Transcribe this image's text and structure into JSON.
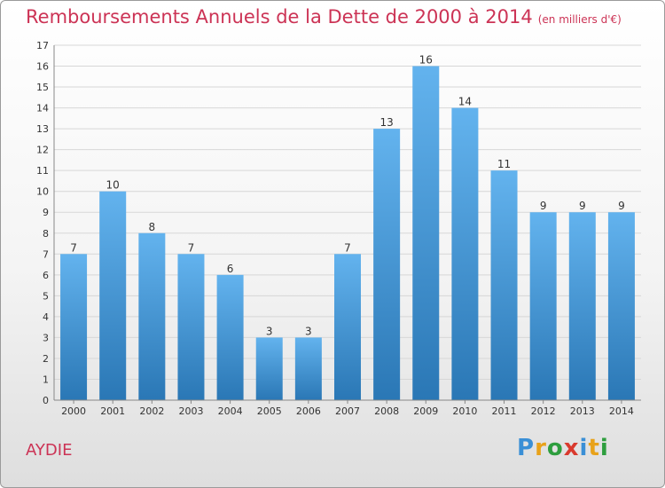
{
  "header": {
    "title": "Remboursements Annuels de la Dette de 2000 à 2014",
    "unit": "(en milliers d'€)"
  },
  "footer": {
    "commune": "AYDIE",
    "logo_letters": [
      "P",
      "r",
      "o",
      "x",
      "i",
      "t",
      "i"
    ],
    "logo_colors": [
      "#3a8fd6",
      "#e8a21a",
      "#2e9e3e",
      "#d93a2e",
      "#3a8fd6",
      "#e8a21a",
      "#2e9e3e"
    ]
  },
  "colors": {
    "title": "#cc3355",
    "bar_light": "#63b3ee",
    "bar_dark": "#2a77b5",
    "grid": "#d7d7d7",
    "axis_text": "#333333"
  },
  "chart_data": {
    "type": "bar",
    "title": "Remboursements Annuels de la Dette de 2000 à 2014",
    "subtitle": "(en milliers d'€)",
    "categories": [
      "2000",
      "2001",
      "2002",
      "2003",
      "2004",
      "2005",
      "2006",
      "2007",
      "2008",
      "2009",
      "2010",
      "2011",
      "2012",
      "2013",
      "2014"
    ],
    "values": [
      7,
      10,
      8,
      7,
      6,
      3,
      3,
      7,
      13,
      16,
      14,
      11,
      9,
      9,
      9
    ],
    "ylim": [
      0,
      17
    ],
    "yticks": [
      0,
      1,
      2,
      3,
      4,
      5,
      6,
      7,
      8,
      9,
      10,
      11,
      12,
      13,
      14,
      15,
      16,
      17
    ],
    "grid": true,
    "data_labels": true
  }
}
